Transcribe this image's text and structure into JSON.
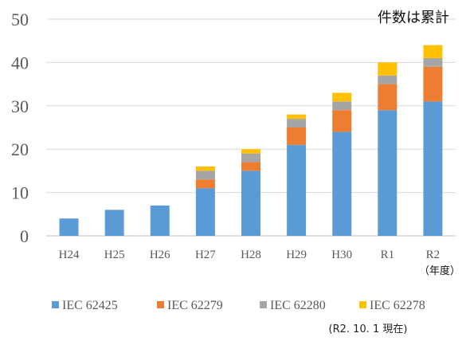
{
  "chart_data": {
    "type": "bar",
    "stacked": true,
    "categories": [
      "H24",
      "H25",
      "H26",
      "H27",
      "H28",
      "H29",
      "H30",
      "R1",
      "R2"
    ],
    "series": [
      {
        "name": "IEC 62425",
        "color": "#5b9bd5",
        "values": [
          4,
          6,
          7,
          11,
          15,
          21,
          24,
          29,
          31
        ]
      },
      {
        "name": "IEC 62279",
        "color": "#ed7d31",
        "values": [
          0,
          0,
          0,
          2,
          2,
          4,
          5,
          6,
          8
        ]
      },
      {
        "name": "IEC 62280",
        "color": "#a5a5a5",
        "values": [
          0,
          0,
          0,
          2,
          2,
          2,
          2,
          2,
          2
        ]
      },
      {
        "name": "IEC 62278",
        "color": "#ffc000",
        "values": [
          0,
          0,
          0,
          1,
          1,
          1,
          2,
          3,
          3
        ]
      }
    ],
    "yticks": [
      0,
      10,
      20,
      30,
      40,
      50
    ],
    "ylim": [
      0,
      50
    ],
    "grid": true,
    "legend": "bottom",
    "xlabel": "（年度）",
    "annotation": "件数は累計",
    "footnote": "(R2. 10. 1 現在)"
  }
}
